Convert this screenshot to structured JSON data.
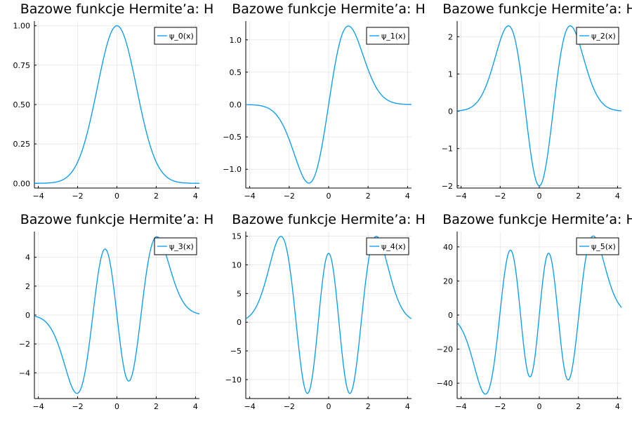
{
  "colors": {
    "series": "#009AFA"
  },
  "chart_data": [
    {
      "type": "line",
      "title": "Bazowe funkcje Hermite’a: H",
      "series": [
        {
          "name": "ψ_0(x)",
          "n": 0
        }
      ],
      "xlim": [
        -4.2,
        4.2
      ],
      "ylim": [
        -0.03,
        1.03
      ],
      "xticks": [
        -4,
        -2,
        0,
        2,
        4
      ],
      "xtick_labels": [
        "−4",
        "−2",
        "0",
        "2",
        "4"
      ],
      "yticks": [
        0,
        0.25,
        0.5,
        0.75,
        1.0
      ],
      "ytick_labels": [
        "0.00",
        "0.25",
        "0.50",
        "0.75",
        "1.00"
      ],
      "grid": true,
      "legend": "top-right"
    },
    {
      "type": "line",
      "title": "Bazowe funkcje Hermite’a: H",
      "series": [
        {
          "name": "ψ_1(x)",
          "n": 1
        }
      ],
      "xlim": [
        -4.2,
        4.2
      ],
      "ylim": [
        -1.29,
        1.29
      ],
      "xticks": [
        -4,
        -2,
        0,
        2,
        4
      ],
      "xtick_labels": [
        "−4",
        "−2",
        "0",
        "2",
        "4"
      ],
      "yticks": [
        -1.0,
        -0.5,
        0.0,
        0.5,
        1.0
      ],
      "ytick_labels": [
        "−1.0",
        "−0.5",
        "0.0",
        "0.5",
        "1.0"
      ],
      "grid": true,
      "legend": "top-right"
    },
    {
      "type": "line",
      "title": "Bazowe funkcje Hermite’a: H",
      "series": [
        {
          "name": "ψ_2(x)",
          "n": 2
        }
      ],
      "xlim": [
        -4.2,
        4.2
      ],
      "ylim": [
        -2.06,
        2.42
      ],
      "xticks": [
        -4,
        -2,
        0,
        2,
        4
      ],
      "xtick_labels": [
        "−4",
        "−2",
        "0",
        "2",
        "4"
      ],
      "yticks": [
        -2,
        -1,
        0,
        1,
        2
      ],
      "ytick_labels": [
        "−2",
        "−1",
        "0",
        "1",
        "2"
      ],
      "grid": true,
      "legend": "top-right"
    },
    {
      "type": "line",
      "title": "Bazowe funkcje Hermite’a: H",
      "series": [
        {
          "name": "ψ_3(x)",
          "n": 3
        }
      ],
      "xlim": [
        -4.2,
        4.2
      ],
      "ylim": [
        -5.78,
        5.78
      ],
      "xticks": [
        -4,
        -2,
        0,
        2,
        4
      ],
      "xtick_labels": [
        "−4",
        "−2",
        "0",
        "2",
        "4"
      ],
      "yticks": [
        -4,
        -2,
        0,
        2,
        4
      ],
      "ytick_labels": [
        "−4",
        "−2",
        "0",
        "2",
        "4"
      ],
      "grid": true,
      "legend": "top-right"
    },
    {
      "type": "line",
      "title": "Bazowe funkcje Hermite’a: H",
      "series": [
        {
          "name": "ψ_4(x)",
          "n": 4
        }
      ],
      "xlim": [
        -4.2,
        4.2
      ],
      "ylim": [
        -13.3,
        15.8
      ],
      "xticks": [
        -4,
        -2,
        0,
        2,
        4
      ],
      "xtick_labels": [
        "−4",
        "−2",
        "0",
        "2",
        "4"
      ],
      "yticks": [
        -10,
        -5,
        0,
        5,
        10,
        15
      ],
      "ytick_labels": [
        "−10",
        "−5",
        "0",
        "5",
        "10",
        "15"
      ],
      "grid": true,
      "legend": "top-right"
    },
    {
      "type": "line",
      "title": "Bazowe funkcje Hermite’a: H",
      "series": [
        {
          "name": "ψ_5(x)",
          "n": 5
        }
      ],
      "xlim": [
        -4.2,
        4.2
      ],
      "ylim": [
        -49,
        49
      ],
      "xticks": [
        -4,
        -2,
        0,
        2,
        4
      ],
      "xtick_labels": [
        "−4",
        "−2",
        "0",
        "2",
        "4"
      ],
      "yticks": [
        -40,
        -20,
        0,
        20,
        40
      ],
      "ytick_labels": [
        "−40",
        "−20",
        "0",
        "20",
        "40"
      ],
      "grid": true,
      "legend": "top-right"
    }
  ]
}
